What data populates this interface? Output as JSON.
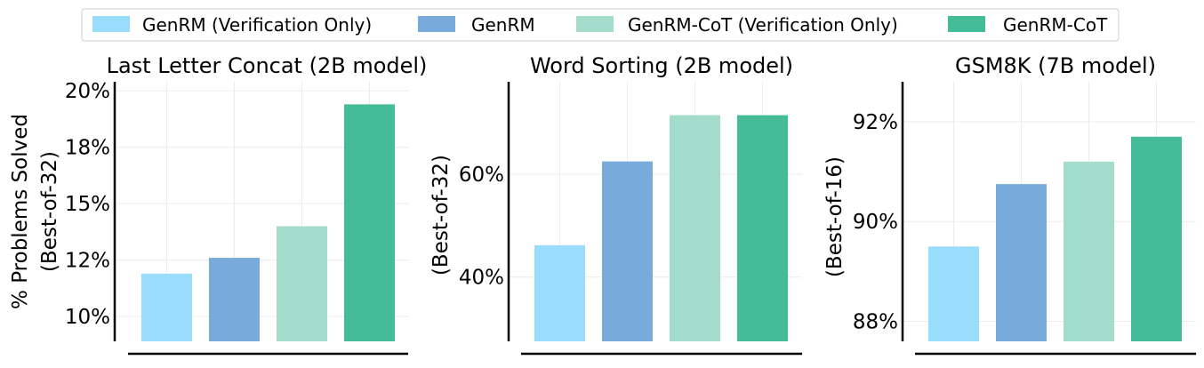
{
  "legend": {
    "placement": "top-center",
    "items": [
      {
        "label": "GenRM (Verification Only)",
        "color": "#99dcfb"
      },
      {
        "label": "GenRM",
        "color": "#79aadc"
      },
      {
        "label": "GenRM-CoT (Verification Only)",
        "color": "#a3dccb"
      },
      {
        "label": "GenRM-CoT",
        "color": "#44bc98"
      }
    ]
  },
  "chart_data": [
    {
      "type": "bar",
      "title": "Last Letter Concat (2B model)",
      "ylabel_lines": [
        "% Problems Solved",
        "(Best-of-32)"
      ],
      "categories": [
        "GenRM (Verification Only)",
        "GenRM",
        "GenRM-CoT (Verification Only)",
        "GenRM-CoT"
      ],
      "values": [
        11.9,
        12.6,
        14.0,
        19.4
      ],
      "ylim": [
        8.9,
        20.4
      ],
      "yticks": [
        10,
        12.5,
        15,
        17.5,
        20
      ],
      "ytick_labels": [
        "10%",
        "12%",
        "15%",
        "18%",
        "20%"
      ],
      "grid": true
    },
    {
      "type": "bar",
      "title": "Word Sorting (2B model)",
      "ylabel_lines": [
        "(Best-of-32)"
      ],
      "categories": [
        "GenRM (Verification Only)",
        "GenRM",
        "GenRM-CoT (Verification Only)",
        "GenRM-CoT"
      ],
      "values": [
        46.2,
        62.5,
        71.5,
        71.5
      ],
      "ylim": [
        27.5,
        78.0
      ],
      "yticks": [
        40,
        60
      ],
      "ytick_labels": [
        "40%",
        "60%"
      ],
      "grid": true
    },
    {
      "type": "bar",
      "title": "GSM8K (7B model)",
      "ylabel_lines": [
        "(Best-of-16)"
      ],
      "categories": [
        "GenRM (Verification Only)",
        "GenRM",
        "GenRM-CoT (Verification Only)",
        "GenRM-CoT"
      ],
      "values": [
        89.5,
        90.75,
        91.2,
        91.7
      ],
      "ylim": [
        87.6,
        92.8
      ],
      "yticks": [
        88,
        90,
        92
      ],
      "ytick_labels": [
        "88%",
        "90%",
        "92%"
      ],
      "grid": true
    }
  ]
}
